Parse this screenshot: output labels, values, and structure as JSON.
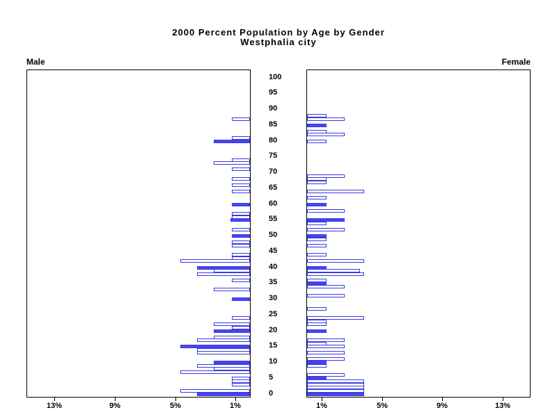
{
  "title": {
    "line1": "2000 Percent Population by Age by Gender",
    "line2": "Westphalia city"
  },
  "panels": {
    "left_label": "Male",
    "right_label": "Female"
  },
  "chart_data": {
    "type": "bar",
    "variant": "population-pyramid",
    "title": "2000 Percent Population by Age by Gender",
    "subtitle": "Westphalia city",
    "legend_position": "none",
    "grid": false,
    "unit": "percent of population",
    "age_axis": {
      "min": 0,
      "max": 100,
      "step": 5,
      "tick_labels": [
        "0",
        "5",
        "10",
        "15",
        "20",
        "25",
        "30",
        "35",
        "40",
        "45",
        "50",
        "55",
        "60",
        "65",
        "70",
        "75",
        "80",
        "85",
        "90",
        "95",
        "100"
      ]
    },
    "pct_axis": {
      "ticks": [
        1,
        5,
        9,
        13
      ],
      "tick_labels": [
        "1%",
        "5%",
        "9%",
        "13%"
      ],
      "max": 14.8
    },
    "colors": {
      "bar_fill": "#4547f1",
      "bar_border": "#3a3ae0",
      "bar_empty_fill": "#ffffff",
      "axis": "#000000",
      "text": "#000000"
    },
    "series": [
      {
        "name": "Male",
        "bars": [
          {
            "age": 87,
            "pct": 1.2,
            "filled": false
          },
          {
            "age": 81,
            "pct": 1.2,
            "filled": false
          },
          {
            "age": 80,
            "pct": 2.4,
            "filled": true
          },
          {
            "age": 74,
            "pct": 1.2,
            "filled": false
          },
          {
            "age": 73,
            "pct": 2.4,
            "filled": false
          },
          {
            "age": 71,
            "pct": 1.2,
            "filled": false
          },
          {
            "age": 68,
            "pct": 1.2,
            "filled": false
          },
          {
            "age": 66,
            "pct": 1.2,
            "filled": false
          },
          {
            "age": 64,
            "pct": 1.2,
            "filled": false
          },
          {
            "age": 60,
            "pct": 1.2,
            "filled": true
          },
          {
            "age": 57,
            "pct": 1.2,
            "filled": false
          },
          {
            "age": 56,
            "pct": 1.2,
            "filled": false
          },
          {
            "age": 55,
            "pct": 1.3,
            "filled": true
          },
          {
            "age": 52,
            "pct": 1.2,
            "filled": false
          },
          {
            "age": 50,
            "pct": 1.2,
            "filled": true
          },
          {
            "age": 48,
            "pct": 1.2,
            "filled": false
          },
          {
            "age": 47,
            "pct": 1.2,
            "filled": false
          },
          {
            "age": 44,
            "pct": 1.2,
            "filled": false
          },
          {
            "age": 43,
            "pct": 1.2,
            "filled": false
          },
          {
            "age": 42,
            "pct": 4.6,
            "filled": false
          },
          {
            "age": 40,
            "pct": 3.5,
            "filled": true
          },
          {
            "age": 39,
            "pct": 2.4,
            "filled": false
          },
          {
            "age": 38,
            "pct": 3.5,
            "filled": false
          },
          {
            "age": 36,
            "pct": 1.2,
            "filled": false
          },
          {
            "age": 33,
            "pct": 2.4,
            "filled": false
          },
          {
            "age": 30,
            "pct": 1.2,
            "filled": true
          },
          {
            "age": 24,
            "pct": 1.2,
            "filled": false
          },
          {
            "age": 22,
            "pct": 2.4,
            "filled": false
          },
          {
            "age": 21,
            "pct": 1.2,
            "filled": false
          },
          {
            "age": 20,
            "pct": 2.4,
            "filled": true
          },
          {
            "age": 18,
            "pct": 2.4,
            "filled": false
          },
          {
            "age": 17,
            "pct": 3.5,
            "filled": false
          },
          {
            "age": 15,
            "pct": 4.6,
            "filled": true
          },
          {
            "age": 14,
            "pct": 3.5,
            "filled": false
          },
          {
            "age": 13,
            "pct": 3.5,
            "filled": false
          },
          {
            "age": 10,
            "pct": 2.4,
            "filled": true
          },
          {
            "age": 9,
            "pct": 3.5,
            "filled": false
          },
          {
            "age": 8,
            "pct": 2.4,
            "filled": false
          },
          {
            "age": 7,
            "pct": 4.6,
            "filled": false
          },
          {
            "age": 5,
            "pct": 1.2,
            "filled": false
          },
          {
            "age": 4,
            "pct": 1.2,
            "filled": false
          },
          {
            "age": 3,
            "pct": 1.2,
            "filled": false
          },
          {
            "age": 1,
            "pct": 4.6,
            "filled": false
          },
          {
            "age": 0,
            "pct": 3.5,
            "filled": true
          }
        ]
      },
      {
        "name": "Female",
        "bars": [
          {
            "age": 88,
            "pct": 1.3,
            "filled": false
          },
          {
            "age": 87,
            "pct": 2.5,
            "filled": false
          },
          {
            "age": 85,
            "pct": 1.3,
            "filled": true
          },
          {
            "age": 83,
            "pct": 1.3,
            "filled": false
          },
          {
            "age": 82,
            "pct": 2.5,
            "filled": false
          },
          {
            "age": 80,
            "pct": 1.3,
            "filled": false
          },
          {
            "age": 69,
            "pct": 2.5,
            "filled": false
          },
          {
            "age": 68,
            "pct": 1.3,
            "filled": false
          },
          {
            "age": 67,
            "pct": 1.3,
            "filled": false
          },
          {
            "age": 64,
            "pct": 3.8,
            "filled": false
          },
          {
            "age": 62,
            "pct": 1.3,
            "filled": false
          },
          {
            "age": 60,
            "pct": 1.3,
            "filled": true
          },
          {
            "age": 58,
            "pct": 2.5,
            "filled": false
          },
          {
            "age": 55,
            "pct": 2.5,
            "filled": true
          },
          {
            "age": 54,
            "pct": 1.3,
            "filled": false
          },
          {
            "age": 52,
            "pct": 2.5,
            "filled": false
          },
          {
            "age": 50,
            "pct": 1.3,
            "filled": true
          },
          {
            "age": 49,
            "pct": 1.3,
            "filled": false
          },
          {
            "age": 47,
            "pct": 1.3,
            "filled": false
          },
          {
            "age": 44,
            "pct": 1.3,
            "filled": false
          },
          {
            "age": 42,
            "pct": 3.8,
            "filled": false
          },
          {
            "age": 40,
            "pct": 1.3,
            "filled": true
          },
          {
            "age": 39,
            "pct": 3.5,
            "filled": false
          },
          {
            "age": 38,
            "pct": 3.8,
            "filled": false
          },
          {
            "age": 36,
            "pct": 1.3,
            "filled": false
          },
          {
            "age": 35,
            "pct": 1.3,
            "filled": true
          },
          {
            "age": 34,
            "pct": 2.5,
            "filled": false
          },
          {
            "age": 31,
            "pct": 2.5,
            "filled": false
          },
          {
            "age": 27,
            "pct": 1.3,
            "filled": false
          },
          {
            "age": 24,
            "pct": 3.8,
            "filled": false
          },
          {
            "age": 23,
            "pct": 1.3,
            "filled": false
          },
          {
            "age": 22,
            "pct": 1.3,
            "filled": false
          },
          {
            "age": 20,
            "pct": 1.3,
            "filled": true
          },
          {
            "age": 17,
            "pct": 2.5,
            "filled": false
          },
          {
            "age": 16,
            "pct": 1.3,
            "filled": false
          },
          {
            "age": 15,
            "pct": 2.5,
            "filled": false
          },
          {
            "age": 13,
            "pct": 2.5,
            "filled": false
          },
          {
            "age": 11,
            "pct": 2.5,
            "filled": false
          },
          {
            "age": 10,
            "pct": 1.3,
            "filled": true
          },
          {
            "age": 9,
            "pct": 1.3,
            "filled": false
          },
          {
            "age": 6,
            "pct": 2.5,
            "filled": false
          },
          {
            "age": 5,
            "pct": 1.3,
            "filled": true
          },
          {
            "age": 4,
            "pct": 3.8,
            "filled": false
          },
          {
            "age": 3,
            "pct": 3.8,
            "filled": false
          },
          {
            "age": 2,
            "pct": 3.8,
            "filled": false
          },
          {
            "age": 1,
            "pct": 3.8,
            "filled": false
          },
          {
            "age": 0,
            "pct": 3.8,
            "filled": true
          }
        ]
      }
    ]
  }
}
